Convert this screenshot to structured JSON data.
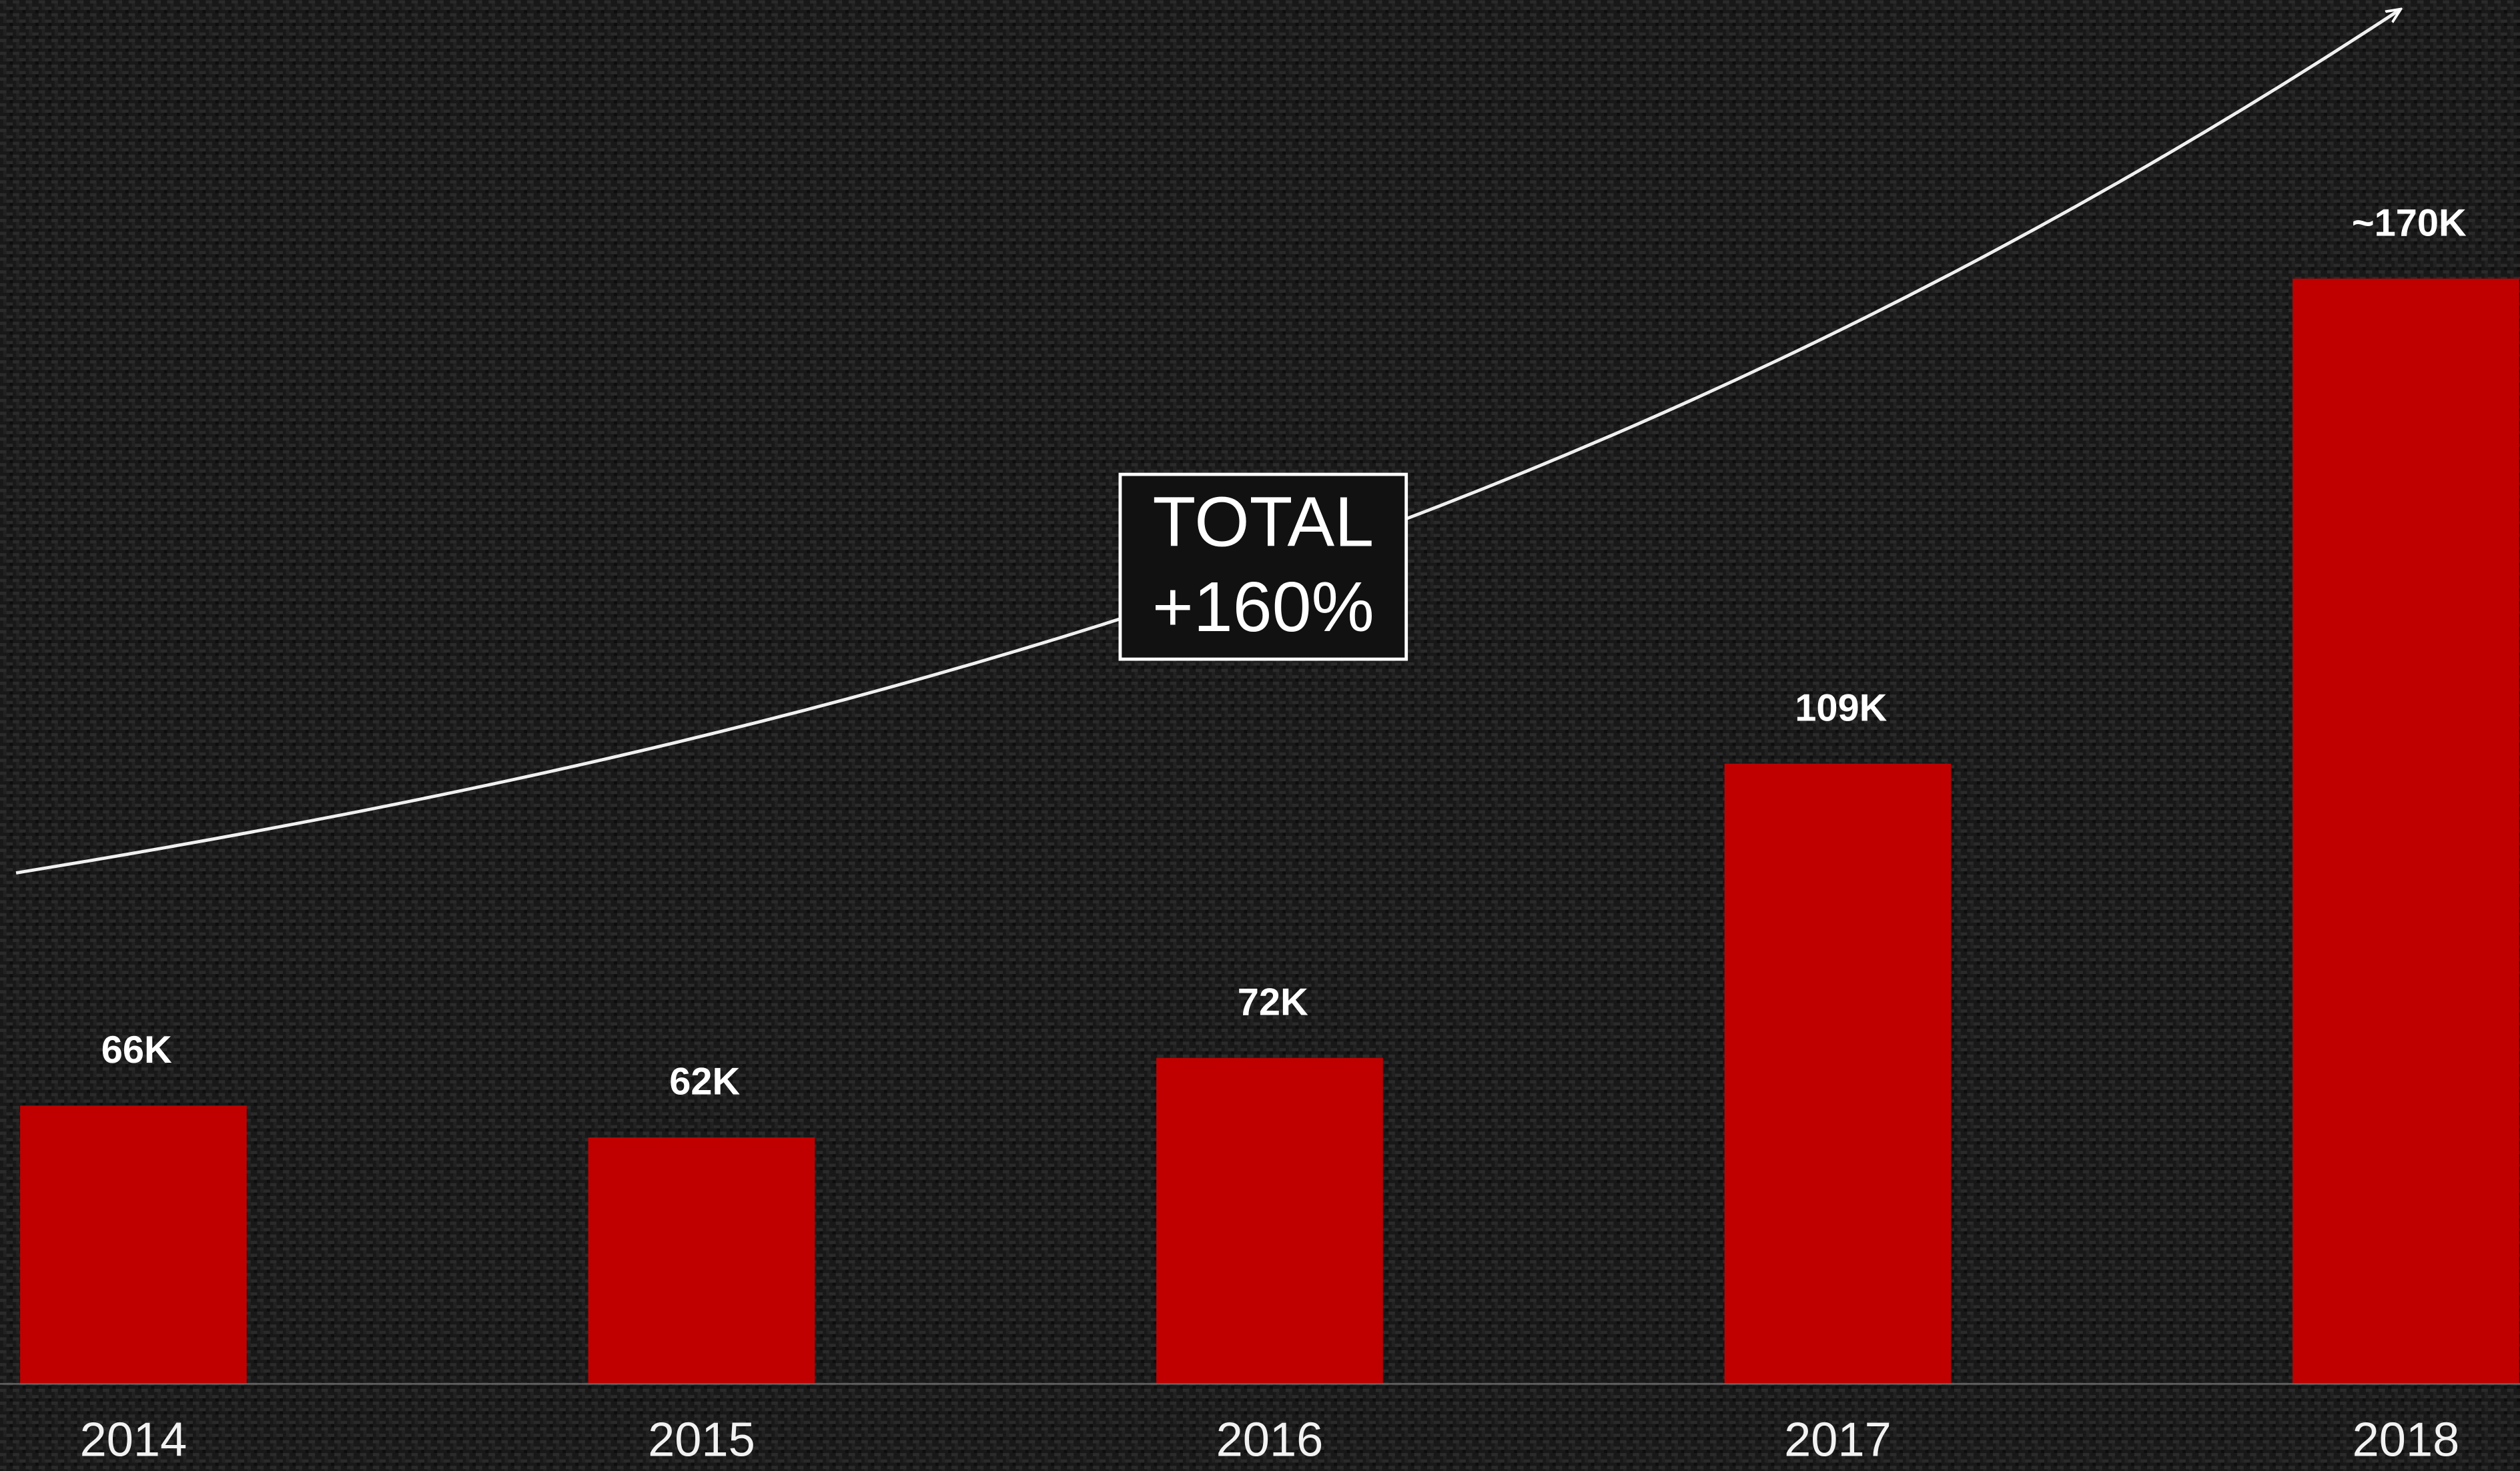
{
  "chart_data": {
    "type": "bar",
    "categories": [
      "2014",
      "2015",
      "2016",
      "2017",
      "2018"
    ],
    "values": [
      66,
      62,
      72,
      109,
      170
    ],
    "value_labels": [
      "66K",
      "62K",
      "72K",
      "109K",
      "~170K"
    ],
    "color": "#c00000",
    "ylim": [
      31,
      205
    ],
    "annotation": [
      "TOTAL",
      "+160%"
    ]
  }
}
